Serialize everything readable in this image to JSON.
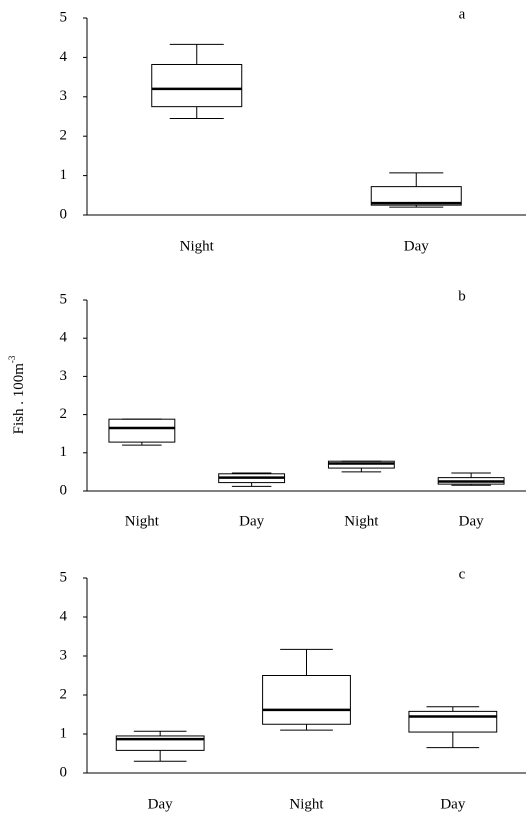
{
  "chart_data": [
    {
      "type": "box",
      "label": "a",
      "categories": [
        "Night",
        "Day"
      ],
      "values": [
        {
          "min": 2.45,
          "q1": 2.75,
          "median": 3.2,
          "q3": 3.82,
          "max": 4.33
        },
        {
          "min": 0.2,
          "q1": 0.25,
          "median": 0.3,
          "q3": 0.72,
          "max": 1.07
        }
      ],
      "ylim": [
        0,
        5
      ],
      "yticks": [
        0,
        1,
        2,
        3,
        4,
        5
      ]
    },
    {
      "type": "box",
      "label": "b",
      "ylabel": "Fish . 100m",
      "ylabel_superscript": "-3",
      "categories": [
        "Night",
        "Day",
        "Night",
        "Day"
      ],
      "values": [
        {
          "min": 1.2,
          "q1": 1.28,
          "median": 1.65,
          "q3": 1.88,
          "max": 1.88
        },
        {
          "min": 0.12,
          "q1": 0.22,
          "median": 0.35,
          "q3": 0.45,
          "max": 0.47
        },
        {
          "min": 0.5,
          "q1": 0.6,
          "median": 0.72,
          "q3": 0.78,
          "max": 0.78
        },
        {
          "min": 0.15,
          "q1": 0.18,
          "median": 0.25,
          "q3": 0.35,
          "max": 0.47
        }
      ],
      "ylim": [
        0,
        5
      ],
      "yticks": [
        0,
        1,
        2,
        3,
        4,
        5
      ]
    },
    {
      "type": "box",
      "label": "c",
      "categories": [
        "Day",
        "Night",
        "Day"
      ],
      "values": [
        {
          "min": 0.3,
          "q1": 0.58,
          "median": 0.87,
          "q3": 0.95,
          "max": 1.07
        },
        {
          "min": 1.1,
          "q1": 1.25,
          "median": 1.62,
          "q3": 2.5,
          "max": 3.17
        },
        {
          "min": 0.65,
          "q1": 1.05,
          "median": 1.45,
          "q3": 1.58,
          "max": 1.7
        }
      ],
      "ylim": [
        0,
        5
      ],
      "yticks": [
        0,
        1,
        2,
        3,
        4,
        5
      ]
    }
  ]
}
